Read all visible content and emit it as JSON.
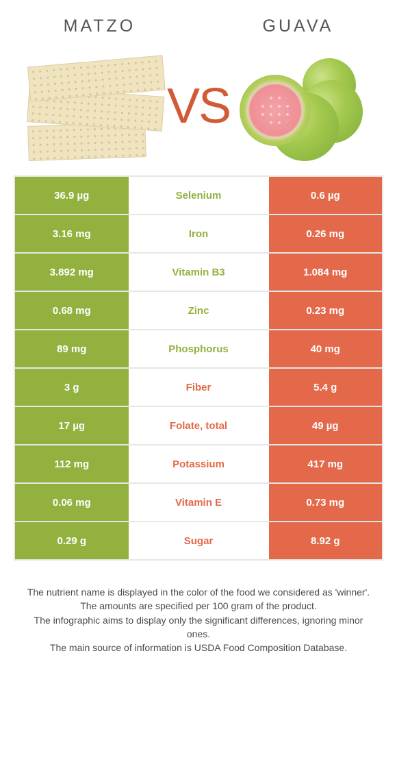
{
  "titles": {
    "left": "Matzo",
    "right": "Guava",
    "vs": "VS"
  },
  "colors": {
    "left": "#93b13f",
    "right": "#e3694a",
    "border": "#e6e6e6",
    "white": "#ffffff"
  },
  "rows": [
    {
      "name": "Selenium",
      "winner": "left",
      "left": "36.9 µg",
      "right": "0.6 µg"
    },
    {
      "name": "Iron",
      "winner": "left",
      "left": "3.16 mg",
      "right": "0.26 mg"
    },
    {
      "name": "Vitamin B3",
      "winner": "left",
      "left": "3.892 mg",
      "right": "1.084 mg"
    },
    {
      "name": "Zinc",
      "winner": "left",
      "left": "0.68 mg",
      "right": "0.23 mg"
    },
    {
      "name": "Phosphorus",
      "winner": "left",
      "left": "89 mg",
      "right": "40 mg"
    },
    {
      "name": "Fiber",
      "winner": "right",
      "left": "3 g",
      "right": "5.4 g"
    },
    {
      "name": "Folate, total",
      "winner": "right",
      "left": "17 µg",
      "right": "49 µg"
    },
    {
      "name": "Potassium",
      "winner": "right",
      "left": "112 mg",
      "right": "417 mg"
    },
    {
      "name": "Vitamin E",
      "winner": "right",
      "left": "0.06 mg",
      "right": "0.73 mg"
    },
    {
      "name": "Sugar",
      "winner": "right",
      "left": "0.29 g",
      "right": "8.92 g"
    }
  ],
  "footnote": {
    "l1": "The nutrient name is displayed in the color of the food we considered as 'winner'.",
    "l2": "The amounts are specified per 100 gram of the product.",
    "l3": "The infographic aims to display only the significant differences, ignoring minor ones.",
    "l4": "The main source of information is USDA Food Composition Database."
  }
}
